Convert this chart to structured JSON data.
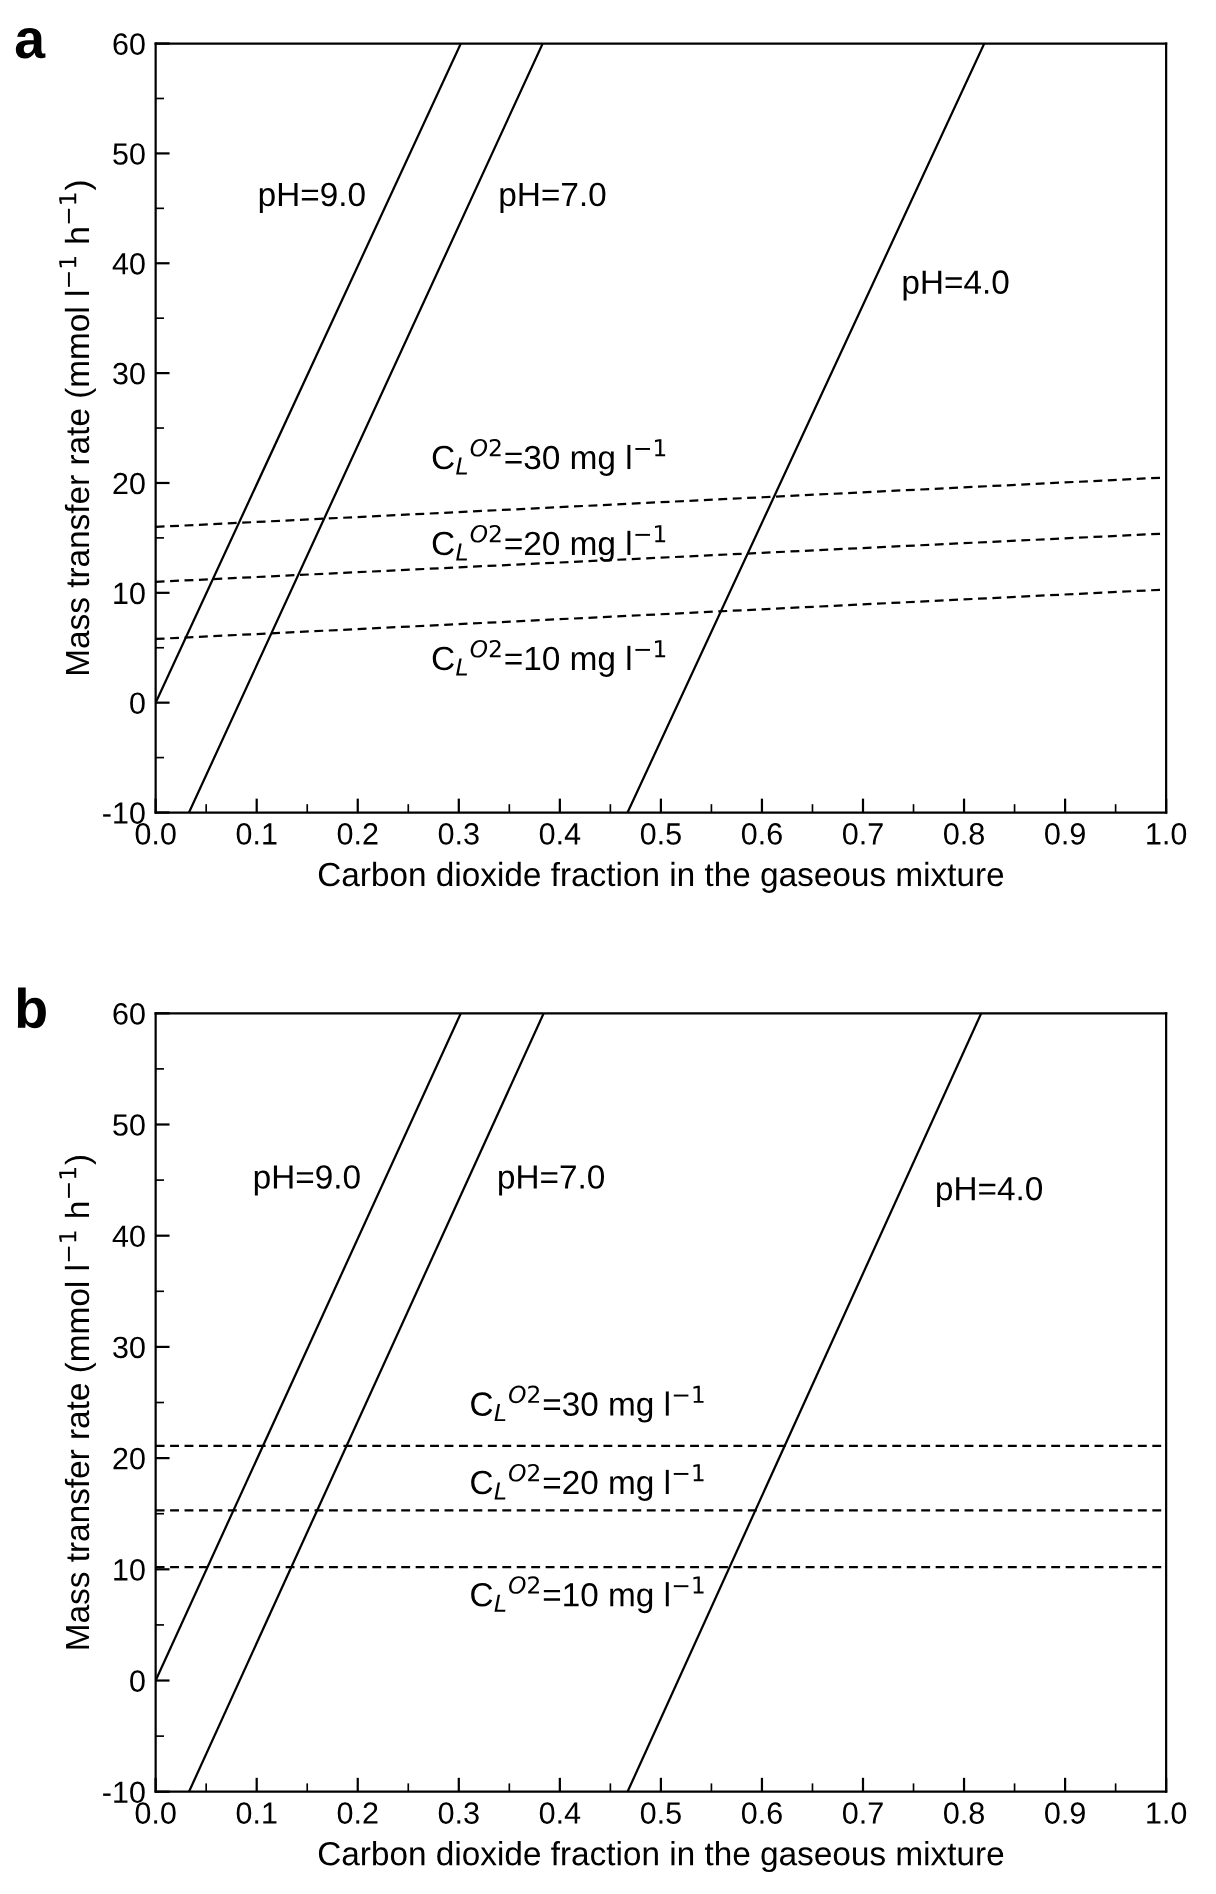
{
  "chart_data": [
    {
      "type": "line",
      "title": "a",
      "xlabel": "Carbon dioxide fraction in the gaseous mixture",
      "ylabel": "Mass transfer rate (mmol l$^{−1}$ h$^{−1}$)",
      "xlim": [
        0.0,
        1.0
      ],
      "ylim": [
        -10,
        60
      ],
      "xticks": [
        {
          "value": 0,
          "label": "0.0"
        },
        {
          "value": 0.1,
          "label": "0.1"
        },
        {
          "value": 0.2,
          "label": "0.2"
        },
        {
          "value": 0.3,
          "label": "0.3"
        },
        {
          "value": 0.4,
          "label": "0.4"
        },
        {
          "value": 0.5,
          "label": "0.5"
        },
        {
          "value": 0.6,
          "label": "0.6"
        },
        {
          "value": 0.7,
          "label": "0.7"
        },
        {
          "value": 0.8,
          "label": "0.8"
        },
        {
          "value": 0.9,
          "label": "0.9"
        },
        {
          "value": 1,
          "label": "1.0"
        }
      ],
      "yticks": [
        -10,
        0,
        10,
        20,
        30,
        40,
        50,
        60
      ],
      "grid": false,
      "legend": false,
      "marker": "none",
      "series": [
        {
          "name": "pH=9.0",
          "color": "#000000",
          "line_style": "solid",
          "x": [
            0.0,
            0.302
          ],
          "values": [
            0,
            60
          ]
        },
        {
          "name": "pH=7.0",
          "color": "#000000",
          "line_style": "solid",
          "x": [
            0.033,
            0.383
          ],
          "values": [
            -10,
            60
          ]
        },
        {
          "name": "pH=4.0",
          "color": "#000000",
          "line_style": "solid",
          "x": [
            0.467,
            0.82
          ],
          "values": [
            -10,
            60
          ]
        },
        {
          "name": "C$_{L}$$^{O2}$=30 mg l$^{−1}$",
          "color": "#000000",
          "line_style": "dashed",
          "x": [
            0.0,
            1.0
          ],
          "values": [
            16,
            20.5
          ]
        },
        {
          "name": "C$_{L}$$^{O2}$=20 mg l$^{−1}$",
          "color": "#000000",
          "line_style": "dashed",
          "x": [
            0.0,
            1.0
          ],
          "values": [
            11,
            15.4
          ]
        },
        {
          "name": "C$_{L}$$^{O2}$=10 mg l$^{−1}$",
          "color": "#000000",
          "line_style": "dashed",
          "x": [
            0.0,
            1.0
          ],
          "values": [
            5.8,
            10.3
          ]
        }
      ]
    },
    {
      "type": "line",
      "title": "b",
      "xlabel": "Carbon dioxide fraction in the gaseous mixture",
      "ylabel": "Mass transfer rate (mmol l$^{−1}$ h$^{−1}$)",
      "xlim": [
        0.0,
        1.0
      ],
      "ylim": [
        -10,
        60
      ],
      "xticks": [
        {
          "value": 0,
          "label": "0.0"
        },
        {
          "value": 0.1,
          "label": "0.1"
        },
        {
          "value": 0.2,
          "label": "0.2"
        },
        {
          "value": 0.3,
          "label": "0.3"
        },
        {
          "value": 0.4,
          "label": "0.4"
        },
        {
          "value": 0.5,
          "label": "0.5"
        },
        {
          "value": 0.6,
          "label": "0.6"
        },
        {
          "value": 0.7,
          "label": "0.7"
        },
        {
          "value": 0.8,
          "label": "0.8"
        },
        {
          "value": 0.9,
          "label": "0.9"
        },
        {
          "value": 1,
          "label": "1.0"
        }
      ],
      "yticks": [
        -10,
        0,
        10,
        20,
        30,
        40,
        50,
        60
      ],
      "grid": false,
      "legend": false,
      "marker": "none",
      "series": [
        {
          "name": "pH=9.0",
          "color": "#000000",
          "line_style": "solid",
          "x": [
            0.0,
            0.302
          ],
          "values": [
            0,
            60
          ]
        },
        {
          "name": "pH=7.0",
          "color": "#000000",
          "line_style": "solid",
          "x": [
            0.033,
            0.384
          ],
          "values": [
            -10,
            60
          ]
        },
        {
          "name": "pH=4.0",
          "color": "#000000",
          "line_style": "solid",
          "x": [
            0.467,
            0.817
          ],
          "values": [
            -10,
            60
          ]
        },
        {
          "name": "C$_{L}$$^{O2}$=30 mg l$^{−1}$",
          "color": "#000000",
          "line_style": "dashed",
          "x": [
            0.0,
            1.0
          ],
          "values": [
            21.1,
            21.1
          ]
        },
        {
          "name": "C$_{L}$$^{O2}$=20 mg l$^{−1}$",
          "color": "#000000",
          "line_style": "dashed",
          "x": [
            0.0,
            1.0
          ],
          "values": [
            15.3,
            15.3
          ]
        },
        {
          "name": "C$_{L}$$^{O2}$=10 mg l$^{−1}$",
          "color": "#000000",
          "line_style": "dashed",
          "x": [
            0.0,
            1.0
          ],
          "values": [
            10.2,
            10.2
          ]
        }
      ]
    }
  ]
}
